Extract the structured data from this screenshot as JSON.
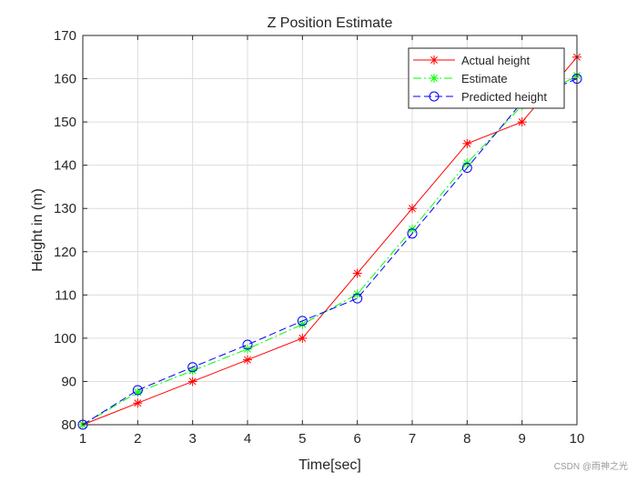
{
  "chart_data": {
    "type": "line",
    "title": "Z Position Estimate",
    "xlabel": "Time[sec]",
    "ylabel": "Height in (m)",
    "xlim": [
      1,
      10
    ],
    "ylim": [
      80,
      170
    ],
    "xticks": [
      1,
      2,
      3,
      4,
      5,
      6,
      7,
      8,
      9,
      10
    ],
    "yticks": [
      80,
      90,
      100,
      110,
      120,
      130,
      140,
      150,
      160,
      170
    ],
    "grid": true,
    "legend_position": "top-right",
    "x": [
      1,
      2,
      3,
      4,
      5,
      6,
      7,
      8,
      9,
      10
    ],
    "series": [
      {
        "name": "Actual height",
        "values": [
          80,
          85,
          90,
          95,
          100,
          115,
          130,
          145,
          150,
          165
        ],
        "color": "#ff0000",
        "line_style": "solid",
        "marker": "star"
      },
      {
        "name": "Estimate",
        "values": [
          80,
          87.5,
          92.5,
          97.5,
          103.2,
          110.2,
          125.2,
          140.5,
          153.8,
          160.7
        ],
        "color": "#00ff00",
        "line_style": "dash-dot",
        "marker": "star"
      },
      {
        "name": "Predicted height",
        "values": [
          80,
          88,
          93.3,
          98.5,
          104,
          109.2,
          124.2,
          139.4,
          154.6,
          160
        ],
        "color": "#0000ff",
        "line_style": "dashed",
        "marker": "circle"
      }
    ]
  },
  "watermark": "CSDN @雨神之光"
}
